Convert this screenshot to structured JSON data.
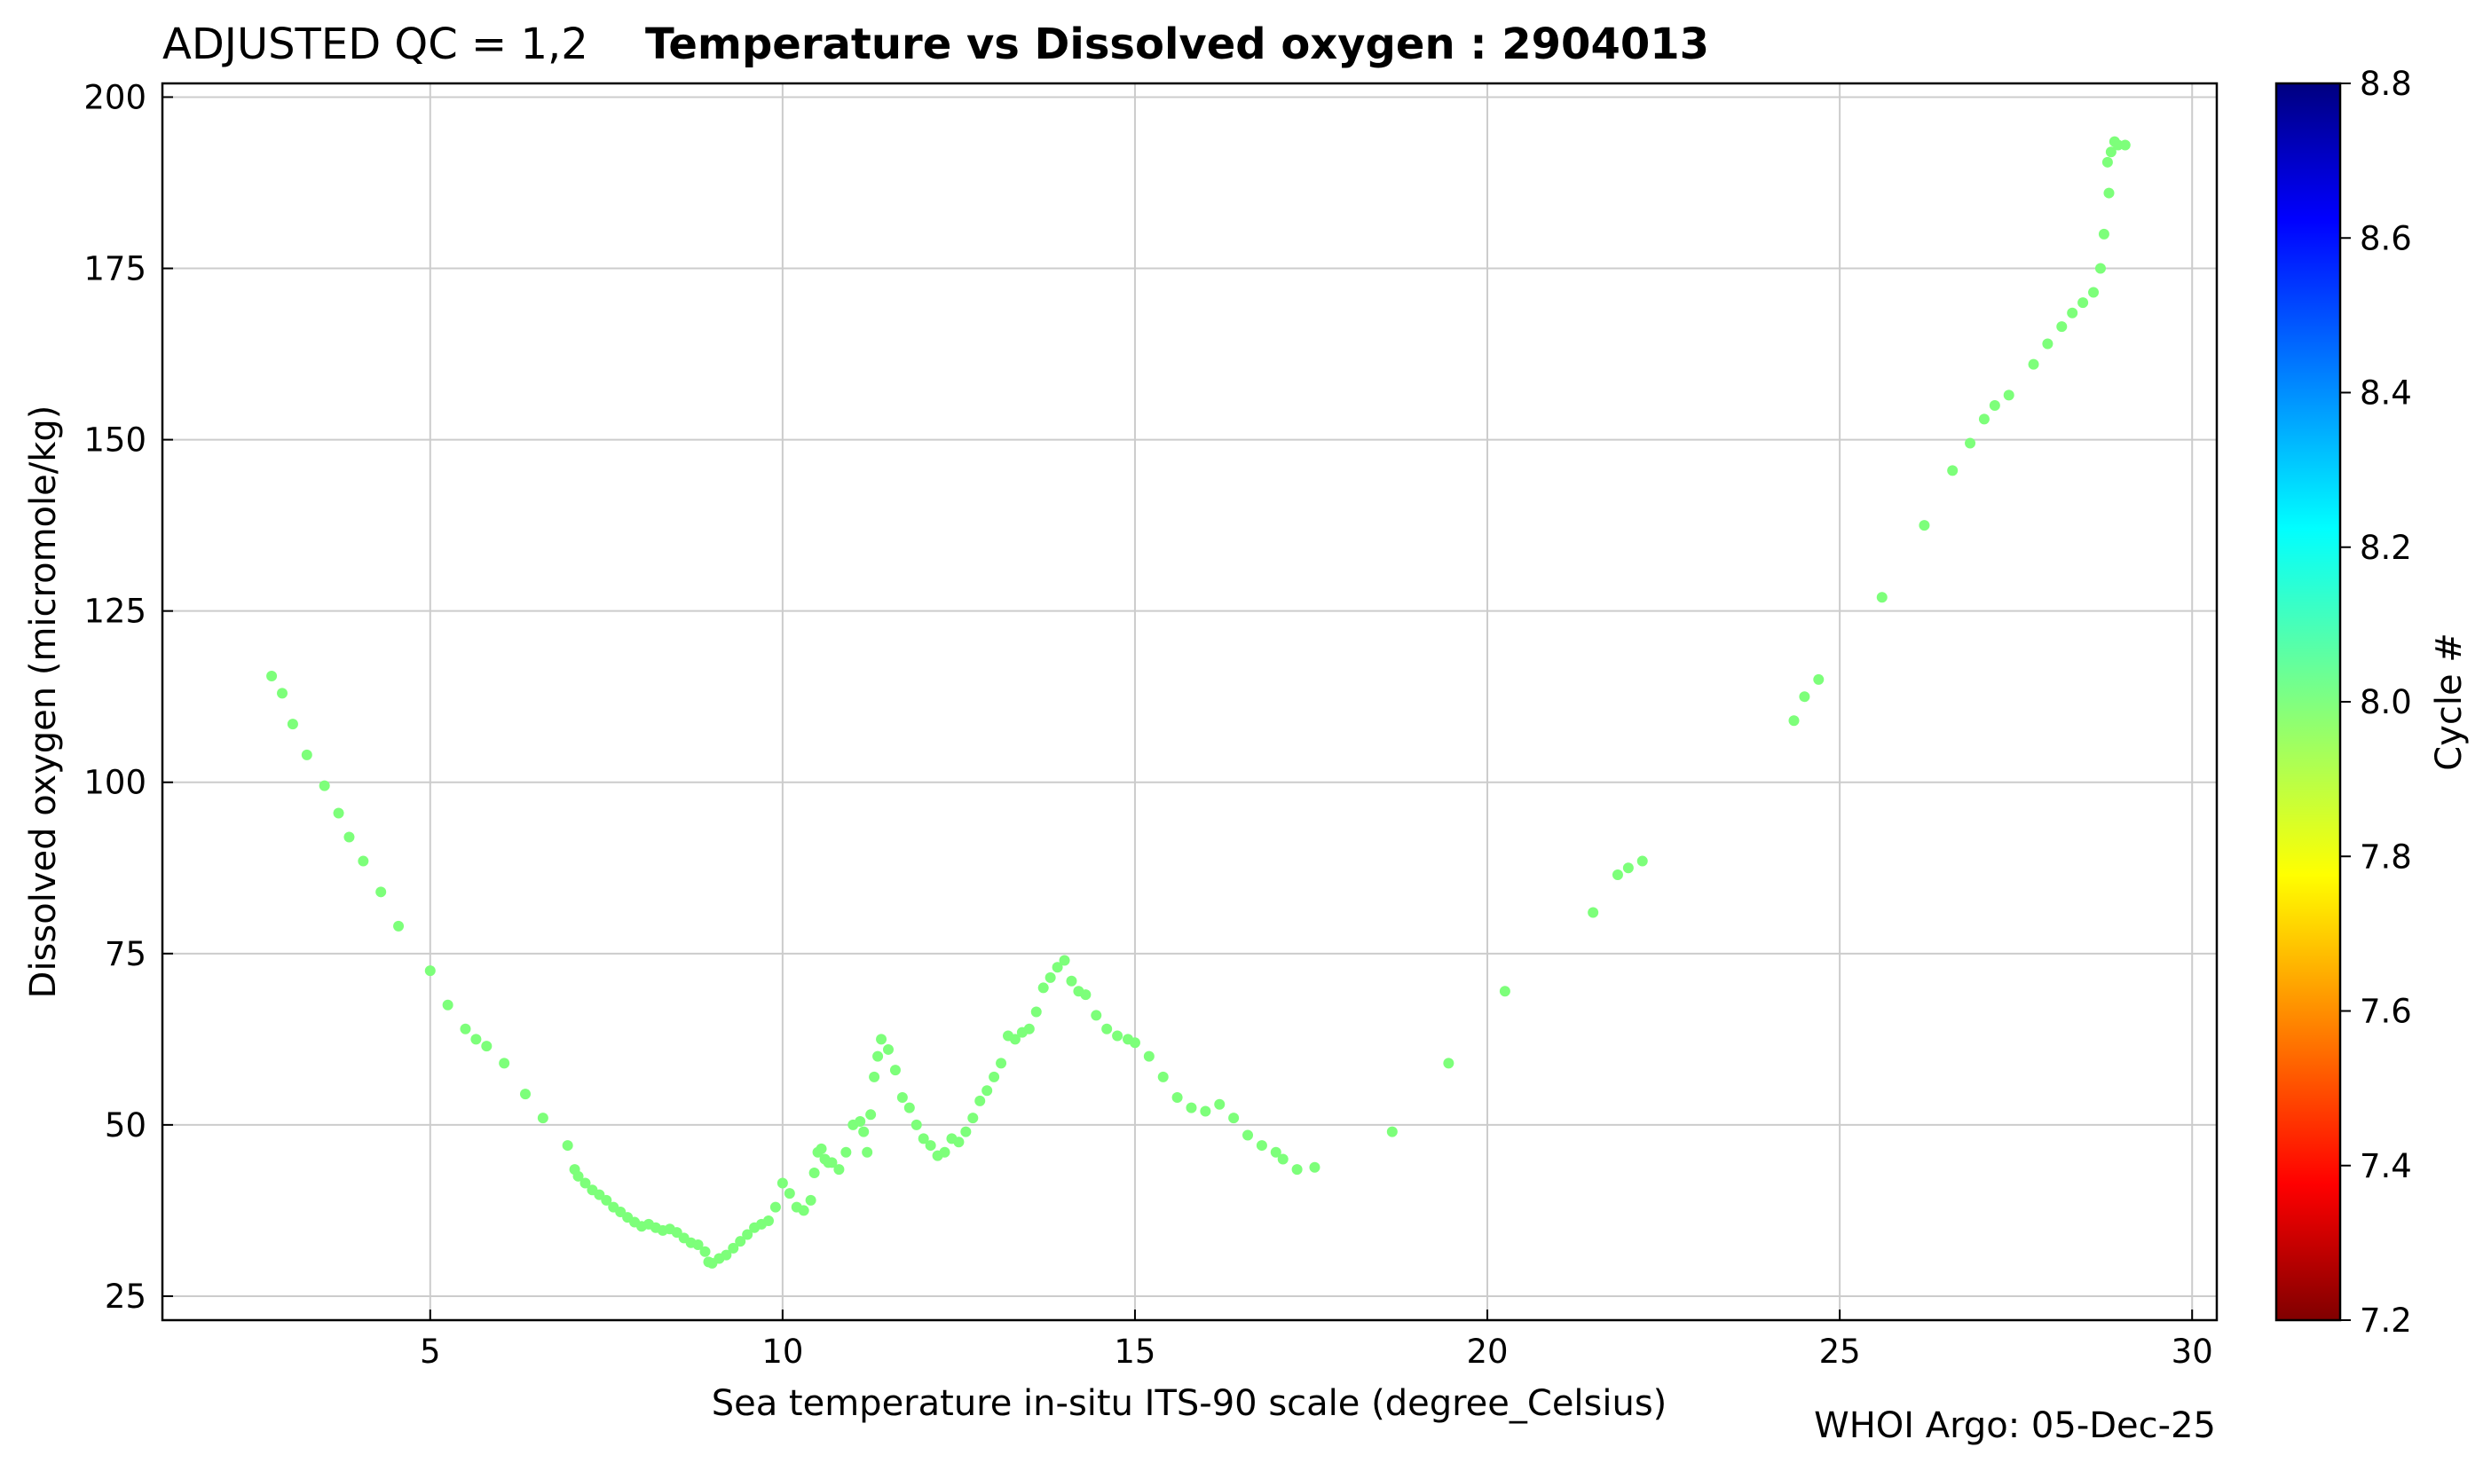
{
  "chart_data": {
    "type": "scatter",
    "title_prefix": "ADJUSTED QC = 1,2",
    "title": "Temperature vs Dissolved oxygen : 2904013",
    "xlabel": "Sea temperature in-situ ITS-90 scale  (degree_Celsius)",
    "ylabel": "Dissolved oxygen  (micromole/kg)",
    "xlim": [
      1.2,
      30.35
    ],
    "ylim": [
      21.5,
      202
    ],
    "xticks": [
      5,
      10,
      15,
      20,
      25,
      30
    ],
    "yticks": [
      25,
      50,
      75,
      100,
      125,
      150,
      175,
      200
    ],
    "grid": true,
    "marker_color": "#7dff7a",
    "series": [
      {
        "name": "Cycle 8",
        "cycle": 8,
        "x": [
          2.75,
          2.9,
          3.05,
          3.25,
          3.5,
          3.7,
          3.85,
          4.05,
          4.3,
          4.55,
          5.0,
          5.25,
          5.5,
          5.65,
          5.8,
          6.05,
          6.35,
          6.6,
          6.95,
          7.05,
          7.1,
          7.2,
          7.3,
          7.4,
          7.5,
          7.6,
          7.7,
          7.8,
          7.9,
          8.0,
          8.1,
          8.2,
          8.3,
          8.4,
          8.5,
          8.6,
          8.7,
          8.8,
          8.9,
          8.95,
          9.0,
          9.1,
          9.2,
          9.3,
          9.4,
          9.5,
          9.6,
          9.7,
          9.8,
          9.9,
          10.0,
          10.1,
          10.2,
          10.3,
          10.4,
          10.45,
          10.5,
          10.55,
          10.6,
          10.65,
          10.7,
          10.8,
          10.9,
          11.0,
          11.1,
          11.15,
          11.2,
          11.25,
          11.3,
          11.35,
          11.4,
          11.5,
          11.6,
          11.7,
          11.8,
          11.9,
          12.0,
          12.1,
          12.2,
          12.3,
          12.4,
          12.5,
          12.6,
          12.7,
          12.8,
          12.9,
          13.0,
          13.1,
          13.2,
          13.3,
          13.4,
          13.5,
          13.6,
          13.7,
          13.8,
          13.9,
          14.0,
          14.1,
          14.2,
          14.3,
          14.45,
          14.6,
          14.75,
          14.9,
          15.0,
          15.2,
          15.4,
          15.6,
          15.8,
          16.0,
          16.2,
          16.4,
          16.6,
          16.8,
          17.0,
          17.1,
          17.3,
          17.55,
          18.65,
          19.45,
          20.25,
          21.5,
          21.85,
          22.0,
          22.2,
          24.35,
          24.5,
          24.7,
          25.6,
          26.2,
          26.6,
          26.85,
          27.05,
          27.2,
          27.4,
          27.75,
          27.95,
          28.15,
          28.3,
          28.45,
          28.6,
          28.7,
          28.75,
          28.8,
          28.82,
          28.85,
          28.9,
          28.95,
          29.05
        ],
        "y": [
          115.5,
          113.0,
          108.5,
          104.0,
          99.5,
          95.5,
          92.0,
          88.5,
          84.0,
          79.0,
          72.5,
          67.5,
          64.0,
          62.5,
          61.5,
          59.0,
          54.5,
          51.0,
          47.0,
          43.5,
          42.5,
          41.5,
          40.5,
          39.8,
          39.0,
          38.0,
          37.3,
          36.5,
          35.8,
          35.2,
          35.5,
          35.0,
          34.6,
          34.8,
          34.3,
          33.5,
          32.8,
          32.5,
          31.5,
          30.0,
          29.8,
          30.5,
          31.0,
          32.0,
          33.0,
          34.0,
          35.0,
          35.5,
          36.0,
          38.0,
          41.5,
          40.0,
          38.0,
          37.5,
          39.0,
          43.0,
          46.0,
          46.5,
          45.0,
          44.5,
          44.5,
          43.5,
          46.0,
          50.0,
          50.5,
          49.0,
          46.0,
          51.5,
          57.0,
          60.0,
          62.5,
          61.0,
          58.0,
          54.0,
          52.5,
          50.0,
          48.0,
          47.0,
          45.5,
          46.0,
          48.0,
          47.5,
          49.0,
          51.0,
          53.5,
          55.0,
          57.0,
          59.0,
          63.0,
          62.5,
          63.5,
          64.0,
          66.5,
          70.0,
          71.5,
          73.0,
          74.0,
          71.0,
          69.5,
          69.0,
          66.0,
          64.0,
          63.0,
          62.5,
          62.0,
          60.0,
          57.0,
          54.0,
          52.5,
          52.0,
          53.0,
          51.0,
          48.5,
          47.0,
          46.0,
          45.0,
          43.5,
          43.8,
          49.0,
          59.0,
          69.5,
          81.0,
          86.5,
          87.5,
          88.5,
          109.0,
          112.5,
          115.0,
          127.0,
          137.5,
          145.5,
          149.5,
          153.0,
          155.0,
          156.5,
          161.0,
          164.0,
          166.5,
          168.5,
          170.0,
          171.5,
          175.0,
          180.0,
          190.5,
          186.0,
          192.0,
          193.5,
          193.0,
          193.0
        ]
      }
    ],
    "colorbar": {
      "label": "Cycle #",
      "min": 7.2,
      "max": 8.8,
      "colormap": "jet",
      "ticks": [
        "7.2",
        "7.4",
        "7.6",
        "7.8",
        "8.0",
        "8.2",
        "8.4",
        "8.6",
        "8.8"
      ]
    },
    "footer": "WHOI Argo: 05-Dec-25"
  }
}
